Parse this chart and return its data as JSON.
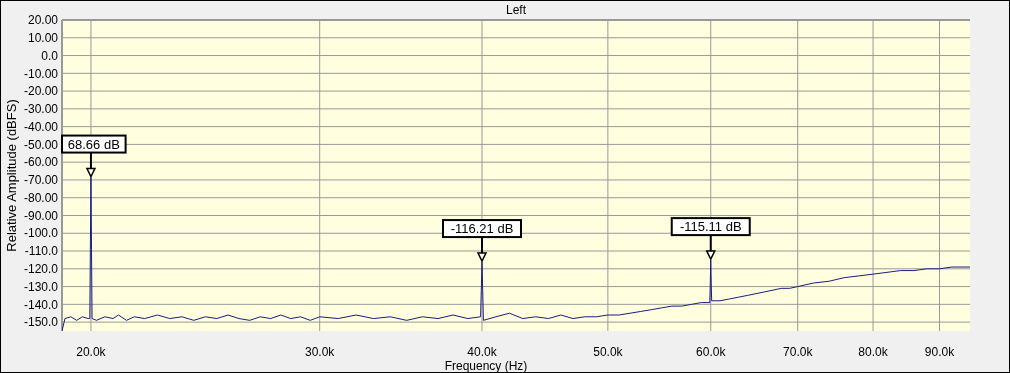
{
  "chart_data": {
    "type": "line",
    "title": "Left",
    "xlabel": "Frequency (Hz)",
    "ylabel": "Relative Amplitude (dBFS)",
    "log": "x",
    "grid": true,
    "xlim": [
      19000,
      95000
    ],
    "ylim": [
      -155,
      20
    ],
    "xticks": [
      {
        "value": 20000,
        "label": "20.0k"
      },
      {
        "value": 30000,
        "label": "30.0k"
      },
      {
        "value": 40000,
        "label": "40.0k"
      },
      {
        "value": 50000,
        "label": "50.0k"
      },
      {
        "value": 60000,
        "label": "60.0k"
      },
      {
        "value": 70000,
        "label": "70.0k"
      },
      {
        "value": 80000,
        "label": "80.0k"
      },
      {
        "value": 90000,
        "label": "90.0k"
      }
    ],
    "yticks": [
      {
        "value": 20,
        "label": "20.00"
      },
      {
        "value": 10,
        "label": "10.00"
      },
      {
        "value": 0,
        "label": "0.0"
      },
      {
        "value": -10,
        "label": "-10.00"
      },
      {
        "value": -20,
        "label": "-20.00"
      },
      {
        "value": -30,
        "label": "-30.00"
      },
      {
        "value": -40,
        "label": "-40.00"
      },
      {
        "value": -50,
        "label": "-50.00"
      },
      {
        "value": -60,
        "label": "-60.00"
      },
      {
        "value": -70,
        "label": "-70.00"
      },
      {
        "value": -80,
        "label": "-80.00"
      },
      {
        "value": -90,
        "label": "-90.00"
      },
      {
        "value": -100,
        "label": "-100.0"
      },
      {
        "value": -110,
        "label": "-110.0"
      },
      {
        "value": -120,
        "label": "-120.0"
      },
      {
        "value": -130,
        "label": "-130.0"
      },
      {
        "value": -140,
        "label": "-140.0"
      },
      {
        "value": -150,
        "label": "-150.0"
      }
    ],
    "annotations": [
      {
        "text": "68.66 dB",
        "x": 20000,
        "y": -68.66
      },
      {
        "text": "-116.21 dB",
        "x": 40000,
        "y": -116.21
      },
      {
        "text": "-115.11 dB",
        "x": 60000,
        "y": -115.11
      }
    ],
    "series": [
      {
        "color": "#1c1c80",
        "x": [
          19000,
          19100,
          19300,
          19500,
          19700,
          19900,
          19960,
          19980,
          20000,
          20020,
          20040,
          20200,
          20500,
          20800,
          21000,
          21300,
          21600,
          22000,
          22500,
          23000,
          23500,
          24000,
          24500,
          25000,
          25500,
          26000,
          26500,
          27000,
          27500,
          28000,
          28500,
          29000,
          29500,
          30000,
          31000,
          32000,
          33000,
          34000,
          35000,
          36000,
          37000,
          38000,
          39000,
          39900,
          39950,
          40000,
          40050,
          40100,
          41000,
          42000,
          43000,
          44000,
          45000,
          46000,
          47000,
          48000,
          49000,
          50000,
          51000,
          52000,
          53000,
          54000,
          55000,
          56000,
          57000,
          58000,
          59000,
          59900,
          59950,
          60000,
          60050,
          60100,
          61000,
          62000,
          63000,
          64000,
          65000,
          66000,
          67000,
          68000,
          69000,
          70000,
          72000,
          74000,
          76000,
          78000,
          80000,
          82000,
          84000,
          86000,
          88000,
          90000,
          92000,
          95000
        ],
        "values": [
          -155,
          -148,
          -147,
          -149,
          -147,
          -148,
          -148,
          -109,
          -68.66,
          -109,
          -148,
          -149,
          -147,
          -148,
          -146,
          -149,
          -147,
          -148,
          -146,
          -148,
          -147,
          -149,
          -147,
          -148,
          -146,
          -148,
          -149,
          -147,
          -148,
          -146,
          -148,
          -147,
          -149,
          -147,
          -148,
          -146,
          -148,
          -147,
          -149,
          -147,
          -148,
          -146,
          -148,
          -147,
          -132,
          -116.21,
          -132,
          -149,
          -147,
          -145,
          -148,
          -147,
          -148,
          -146,
          -148,
          -147,
          -147,
          -146,
          -146,
          -145,
          -144,
          -143,
          -142,
          -141,
          -141,
          -140,
          -139,
          -139,
          -128,
          -115.11,
          -128,
          -138,
          -138,
          -137,
          -136,
          -135,
          -134,
          -133,
          -132,
          -131,
          -131,
          -130,
          -128,
          -127,
          -125,
          -124,
          -123,
          -122,
          -121,
          -121,
          -120,
          -120,
          -119,
          -119
        ]
      }
    ]
  }
}
